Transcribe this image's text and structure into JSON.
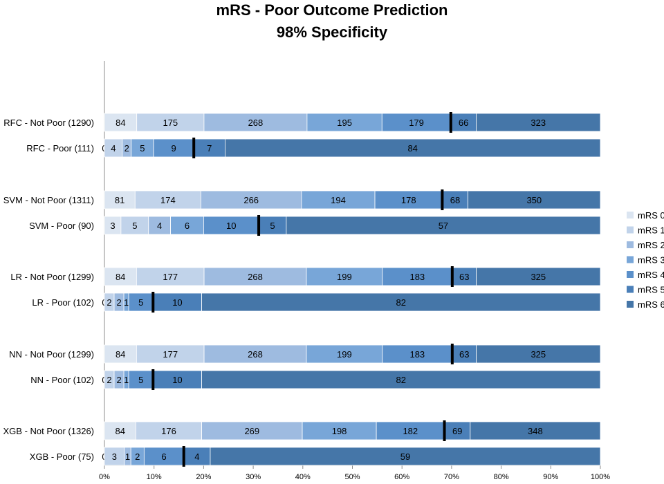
{
  "chart_data": {
    "type": "bar",
    "subtype": "horizontal-stacked-100",
    "title": "mRS - Poor Outcome Prediction",
    "subtitle": "98% Specificity",
    "xlabel": "",
    "ylabel": "",
    "xlim": [
      0,
      100
    ],
    "x_ticks": [
      "0%",
      "10%",
      "20%",
      "30%",
      "40%",
      "50%",
      "60%",
      "70%",
      "80%",
      "90%",
      "100%"
    ],
    "legend_position": "right",
    "series": [
      {
        "name": "mRS 0",
        "color": "#dbe5f1"
      },
      {
        "name": "mRS 1",
        "color": "#c1d3ea"
      },
      {
        "name": "mRS 2",
        "color": "#9ebbe0"
      },
      {
        "name": "mRS 3",
        "color": "#78a6d8"
      },
      {
        "name": "mRS 4",
        "color": "#5b90ca"
      },
      {
        "name": "mRS 5",
        "color": "#4a7fb8"
      },
      {
        "name": "mRS 6",
        "color": "#4576a8"
      }
    ],
    "groups": [
      {
        "rows": [
          {
            "label": "RFC - Not Poor (1290)",
            "values": [
              84,
              175,
              268,
              195,
              179,
              66,
              323
            ],
            "marker_after_index": 4
          },
          {
            "label": "RFC - Poor (111)",
            "values": [
              0,
              4,
              2,
              5,
              9,
              7,
              84
            ],
            "marker_after_index": 4
          }
        ]
      },
      {
        "rows": [
          {
            "label": "SVM - Not Poor (1311)",
            "values": [
              81,
              174,
              266,
              194,
              178,
              68,
              350
            ],
            "marker_after_index": 4
          },
          {
            "label": "SVM - Poor (90)",
            "values": [
              3,
              5,
              4,
              6,
              10,
              5,
              57
            ],
            "marker_after_index": 4
          }
        ]
      },
      {
        "rows": [
          {
            "label": "LR - Not Poor (1299)",
            "values": [
              84,
              177,
              268,
              199,
              183,
              63,
              325
            ],
            "marker_after_index": 4
          },
          {
            "label": "LR - Poor (102)",
            "values": [
              0,
              2,
              2,
              1,
              5,
              10,
              82
            ],
            "marker_after_index": 4
          }
        ]
      },
      {
        "rows": [
          {
            "label": "NN - Not Poor (1299)",
            "values": [
              84,
              177,
              268,
              199,
              183,
              63,
              325
            ],
            "marker_after_index": 4
          },
          {
            "label": "NN - Poor (102)",
            "values": [
              0,
              2,
              2,
              1,
              5,
              10,
              82
            ],
            "marker_after_index": 4
          }
        ]
      },
      {
        "rows": [
          {
            "label": "XGB - Not Poor (1326)",
            "values": [
              84,
              176,
              269,
              198,
              182,
              69,
              348
            ],
            "marker_after_index": 4
          },
          {
            "label": "XGB - Poor (75)",
            "values": [
              0,
              3,
              1,
              2,
              6,
              4,
              59
            ],
            "marker_after_index": 4
          }
        ]
      }
    ]
  }
}
